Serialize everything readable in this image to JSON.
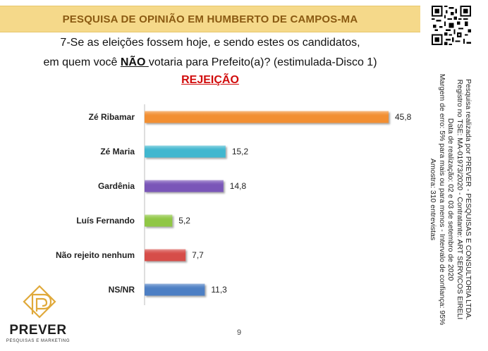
{
  "header": {
    "title": "PESQUISA DE OPINIÃO EM HUMBERTO DE CAMPOS-MA"
  },
  "question": {
    "line1": "7-Se as eleições fossem hoje, e sendo estes os candidatos,",
    "line2_before": "em quem você ",
    "line2_emphasis": "NÃO ",
    "line2_after": "votaria para Prefeito(a)? (estimulada-Disco 1)"
  },
  "subtitle": "REJEIÇÃO",
  "side_notes": [
    "Pesquisa realizada por PREVER - PESQUISAS E CONSULTORIA LTDA.",
    "Registro no TSE: MA-01973/2020 - Contratante: ART SERVICOS EIRELI",
    "Data de realização: 02 e 03 de setembro de 2020",
    "Margem de erro: 5% para mais ou para menos - Intervalo de confiança: 95%",
    "Amostra: 310 entrevistas"
  ],
  "page_number": "9",
  "logo": {
    "name": "PREVER",
    "tagline": "PESQUISAS E MARKETING"
  },
  "chart_data": {
    "type": "bar",
    "orientation": "horizontal",
    "categories": [
      "Zé Ribamar",
      "Zé Maria",
      "Gardênia",
      "Luís Fernando",
      "Não rejeito nenhum",
      "NS/NR"
    ],
    "values": [
      45.8,
      15.2,
      14.8,
      5.2,
      7.7,
      11.3
    ],
    "value_labels": [
      "45,8",
      "15,2",
      "14,8",
      "5,2",
      "7,7",
      "11,3"
    ],
    "colors": [
      "#f28f33",
      "#3fb7cf",
      "#7a56b8",
      "#90c744",
      "#d64d4a",
      "#4d7fc4"
    ],
    "xlim": [
      0,
      48
    ],
    "grid": false,
    "legend": "none"
  }
}
